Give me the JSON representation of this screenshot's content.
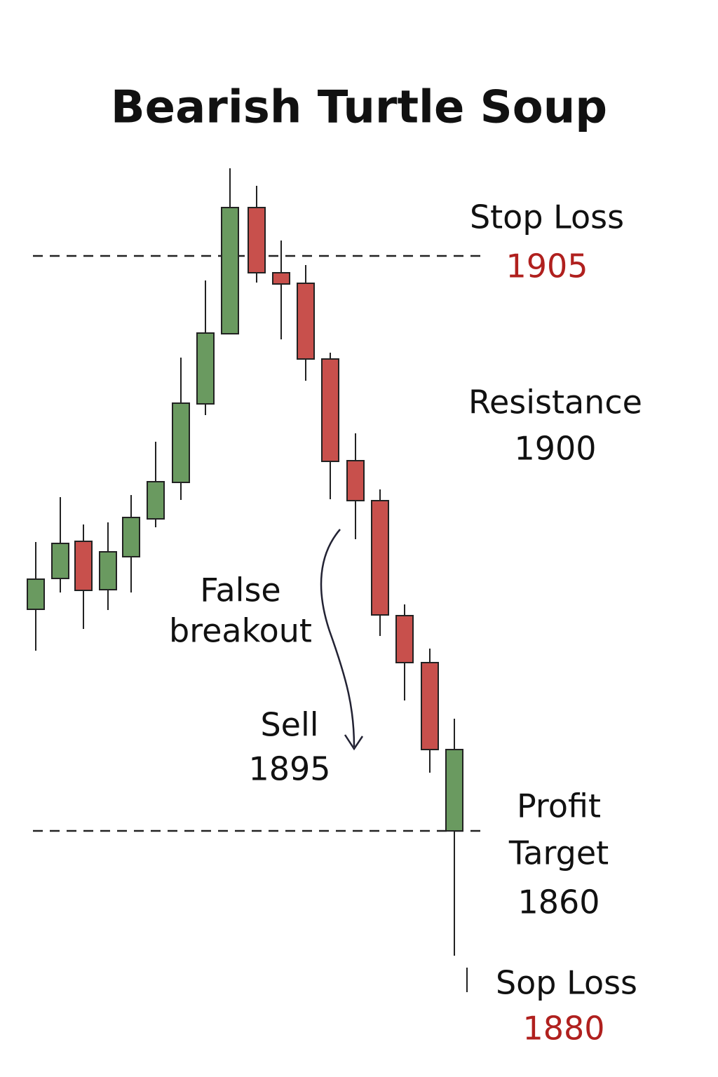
{
  "title": "Bearish Turtle Soup",
  "labels": {
    "stop_loss": {
      "text": "Stop Loss",
      "price": "1905"
    },
    "resistance": {
      "text": "Resistance",
      "price": "1900"
    },
    "false_breakout": {
      "lines": [
        "False",
        "breakout"
      ]
    },
    "sell": {
      "text": "Sell",
      "price": "1895"
    },
    "profit_target": {
      "lines": [
        "Profit",
        "Target"
      ],
      "price": "1860"
    },
    "lower_stop_loss": {
      "text": "Sop Loss",
      "price": "1880"
    }
  }
}
